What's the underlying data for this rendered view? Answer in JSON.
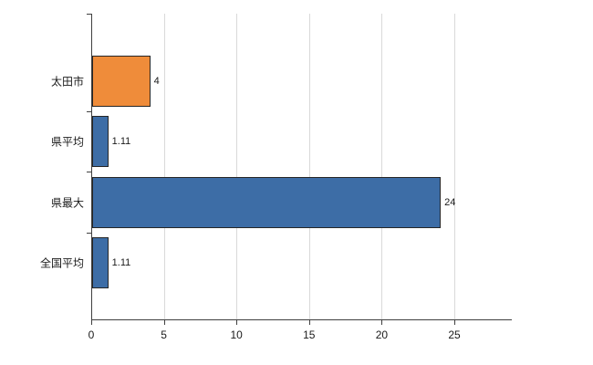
{
  "chart_data": {
    "type": "bar",
    "orientation": "horizontal",
    "title": "",
    "xlabel": "",
    "ylabel": "",
    "categories": [
      "太田市",
      "県平均",
      "県最大",
      "全国平均"
    ],
    "values": [
      4,
      1.11,
      24,
      1.11
    ],
    "value_labels": [
      "4",
      "1.11",
      "24",
      "1.11"
    ],
    "bar_colors": [
      "#ef8c3a",
      "#3d6da6",
      "#3d6da6",
      "#3d6da6"
    ],
    "xticks": [
      0,
      5,
      10,
      15,
      20,
      25
    ],
    "xtick_labels": [
      "0",
      "5",
      "10",
      "15",
      "20",
      "25"
    ],
    "xlim": [
      0,
      28.9
    ],
    "grid": true,
    "legend": "none",
    "colors": {
      "grid": "#d9d9d9",
      "axis": "#404040",
      "text": "#1a1a1a",
      "bar_border": "#262626",
      "background": "#ffffff"
    }
  }
}
